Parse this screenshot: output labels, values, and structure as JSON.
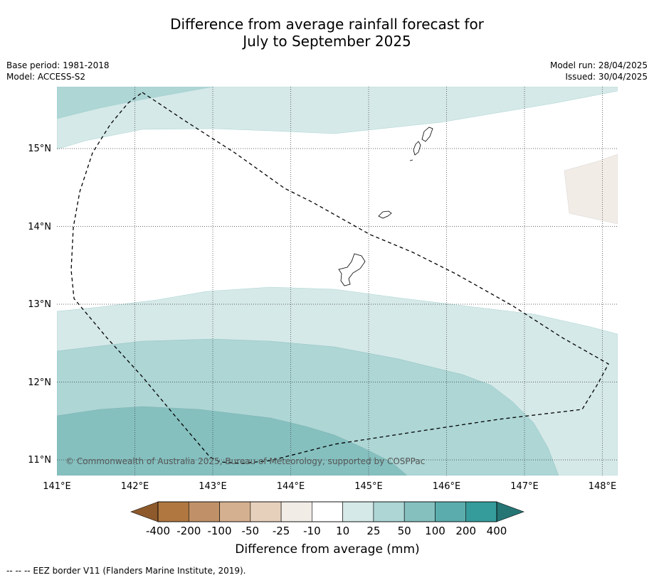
{
  "title": {
    "line1": "Difference from average rainfall forecast for",
    "line2": "July to September 2025"
  },
  "meta": {
    "base_period": "Base period: 1981-2018",
    "model": "Model: ACCESS-S2",
    "model_run": "Model run: 28/04/2025",
    "issued": "Issued: 30/04/2025"
  },
  "map": {
    "lon_range": [
      141.0,
      148.2
    ],
    "lat_range": [
      10.8,
      15.8
    ],
    "x_ticks": [
      "141°E",
      "142°E",
      "143°E",
      "144°E",
      "145°E",
      "146°E",
      "147°E",
      "148°E"
    ],
    "y_ticks": [
      "15°N",
      "14°N",
      "13°N",
      "12°N",
      "11°N"
    ],
    "copyright": "© Commonwealth of Australia 2025, Bureau of Meteorology, supported by COSPPac"
  },
  "colorbar": {
    "labels": [
      "-400",
      "-200",
      "-100",
      "-50",
      "-25",
      "-10",
      "10",
      "25",
      "50",
      "100",
      "200",
      "400"
    ],
    "colors": [
      "#8e5a2c",
      "#b07840",
      "#c09168",
      "#d4b090",
      "#e6d0bc",
      "#f2ece7",
      "#ffffff",
      "#d5e9e8",
      "#add6d5",
      "#85c0bf",
      "#5badad",
      "#359c9b",
      "#257575"
    ],
    "title": "Difference from average (mm)"
  },
  "footer": "-- -- -- EEZ border V11 (Flanders Marine Institute, 2019)."
}
